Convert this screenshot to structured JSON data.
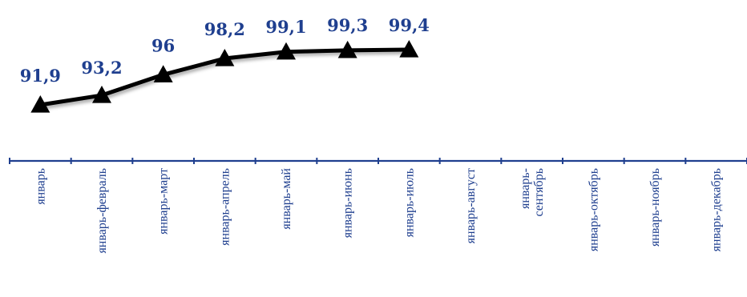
{
  "chart_data": {
    "type": "line",
    "categories": [
      "январь",
      "январь-февраль",
      "январь-март",
      "январь-апрель",
      "январь-май",
      "январь-июнь",
      "январь-июль",
      "январь-август",
      "январь-\nсентябрь",
      "январь-октябрь",
      "январь-ноябрь",
      "январь-декабрь"
    ],
    "series": [
      {
        "values": [
          91.9,
          93.2,
          96,
          98.2,
          99.1,
          99.3,
          99.4,
          null,
          null,
          null,
          null,
          null
        ]
      }
    ],
    "data_labels": [
      "91,9",
      "93,2",
      "96",
      "98,2",
      "99,1",
      "99,3",
      "99,4"
    ],
    "marker": "triangle",
    "line_color": "#000000",
    "label_color": "#1f3f8f",
    "axis_color": "#1f3f8f",
    "ylim": [
      86,
      100
    ],
    "grid": false,
    "legend": "none"
  }
}
